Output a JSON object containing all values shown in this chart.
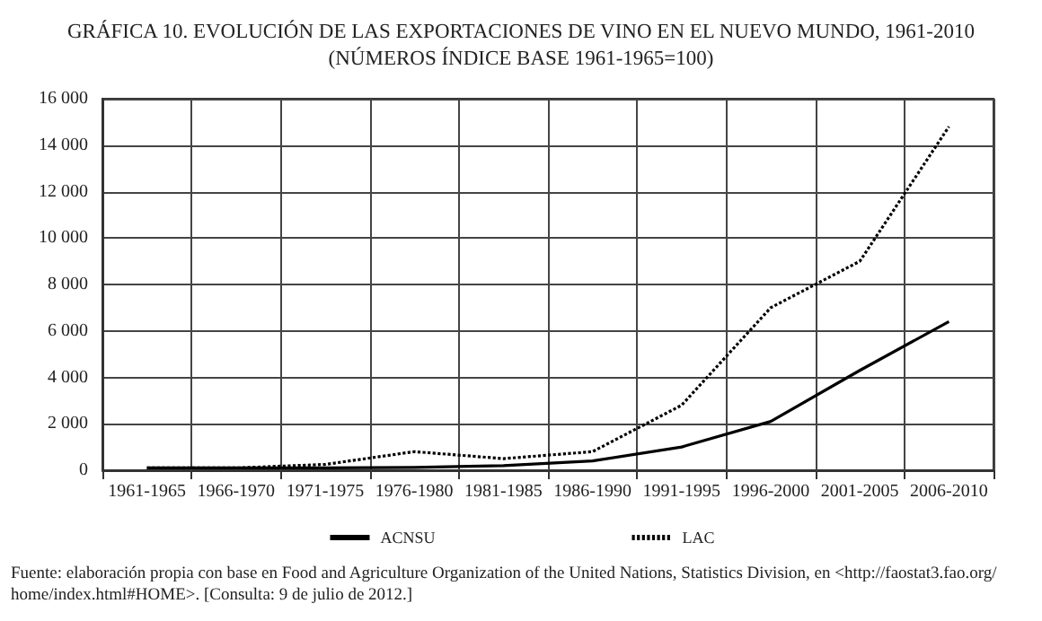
{
  "chart_data": {
    "type": "line",
    "title": "GRÁFICA 10. EVOLUCIÓN DE LAS EXPORTACIONES DE VINO EN EL NUEVO MUNDO, 1961-2010",
    "subtitle": "(NÚMEROS ÍNDICE BASE 1961-1965=100)",
    "categories": [
      "1961-1965",
      "1966-1970",
      "1971-1975",
      "1976-1980",
      "1981-1985",
      "1986-1990",
      "1991-1995",
      "1996-2000",
      "2001-2005",
      "2006-2010"
    ],
    "series": [
      {
        "name": "ACNSU",
        "color": "#000000",
        "line_style": "solid",
        "values": [
          100,
          100,
          100,
          120,
          200,
          400,
          1000,
          2100,
          4300,
          6400
        ]
      },
      {
        "name": "LAC",
        "color": "#000000",
        "line_style": "dotted",
        "values": [
          100,
          100,
          250,
          800,
          500,
          800,
          2800,
          7000,
          9000,
          14800
        ]
      }
    ],
    "ylim": [
      0,
      16000
    ],
    "yticks": [
      0,
      {
        "value": 2000,
        "label": "2 000"
      },
      {
        "value": 4000,
        "label": "4 000"
      },
      {
        "value": 6000,
        "label": "6 000"
      },
      {
        "value": 8000,
        "label": "8 000"
      },
      {
        "value": 10000,
        "label": "10 000"
      },
      {
        "value": 12000,
        "label": "12 000"
      },
      {
        "value": 14000,
        "label": "14 000"
      },
      {
        "value": 16000,
        "label": "16 000"
      }
    ],
    "grid": true,
    "legend": "bottom",
    "annotations": [
      "Fuente: elaboración propia con base en Food and Agriculture Organization of the United Nations, Statistics Division, en <http://faostat3.fao.org/home/index.html#HOME>. [Consulta: 9 de julio de 2012.]"
    ]
  }
}
